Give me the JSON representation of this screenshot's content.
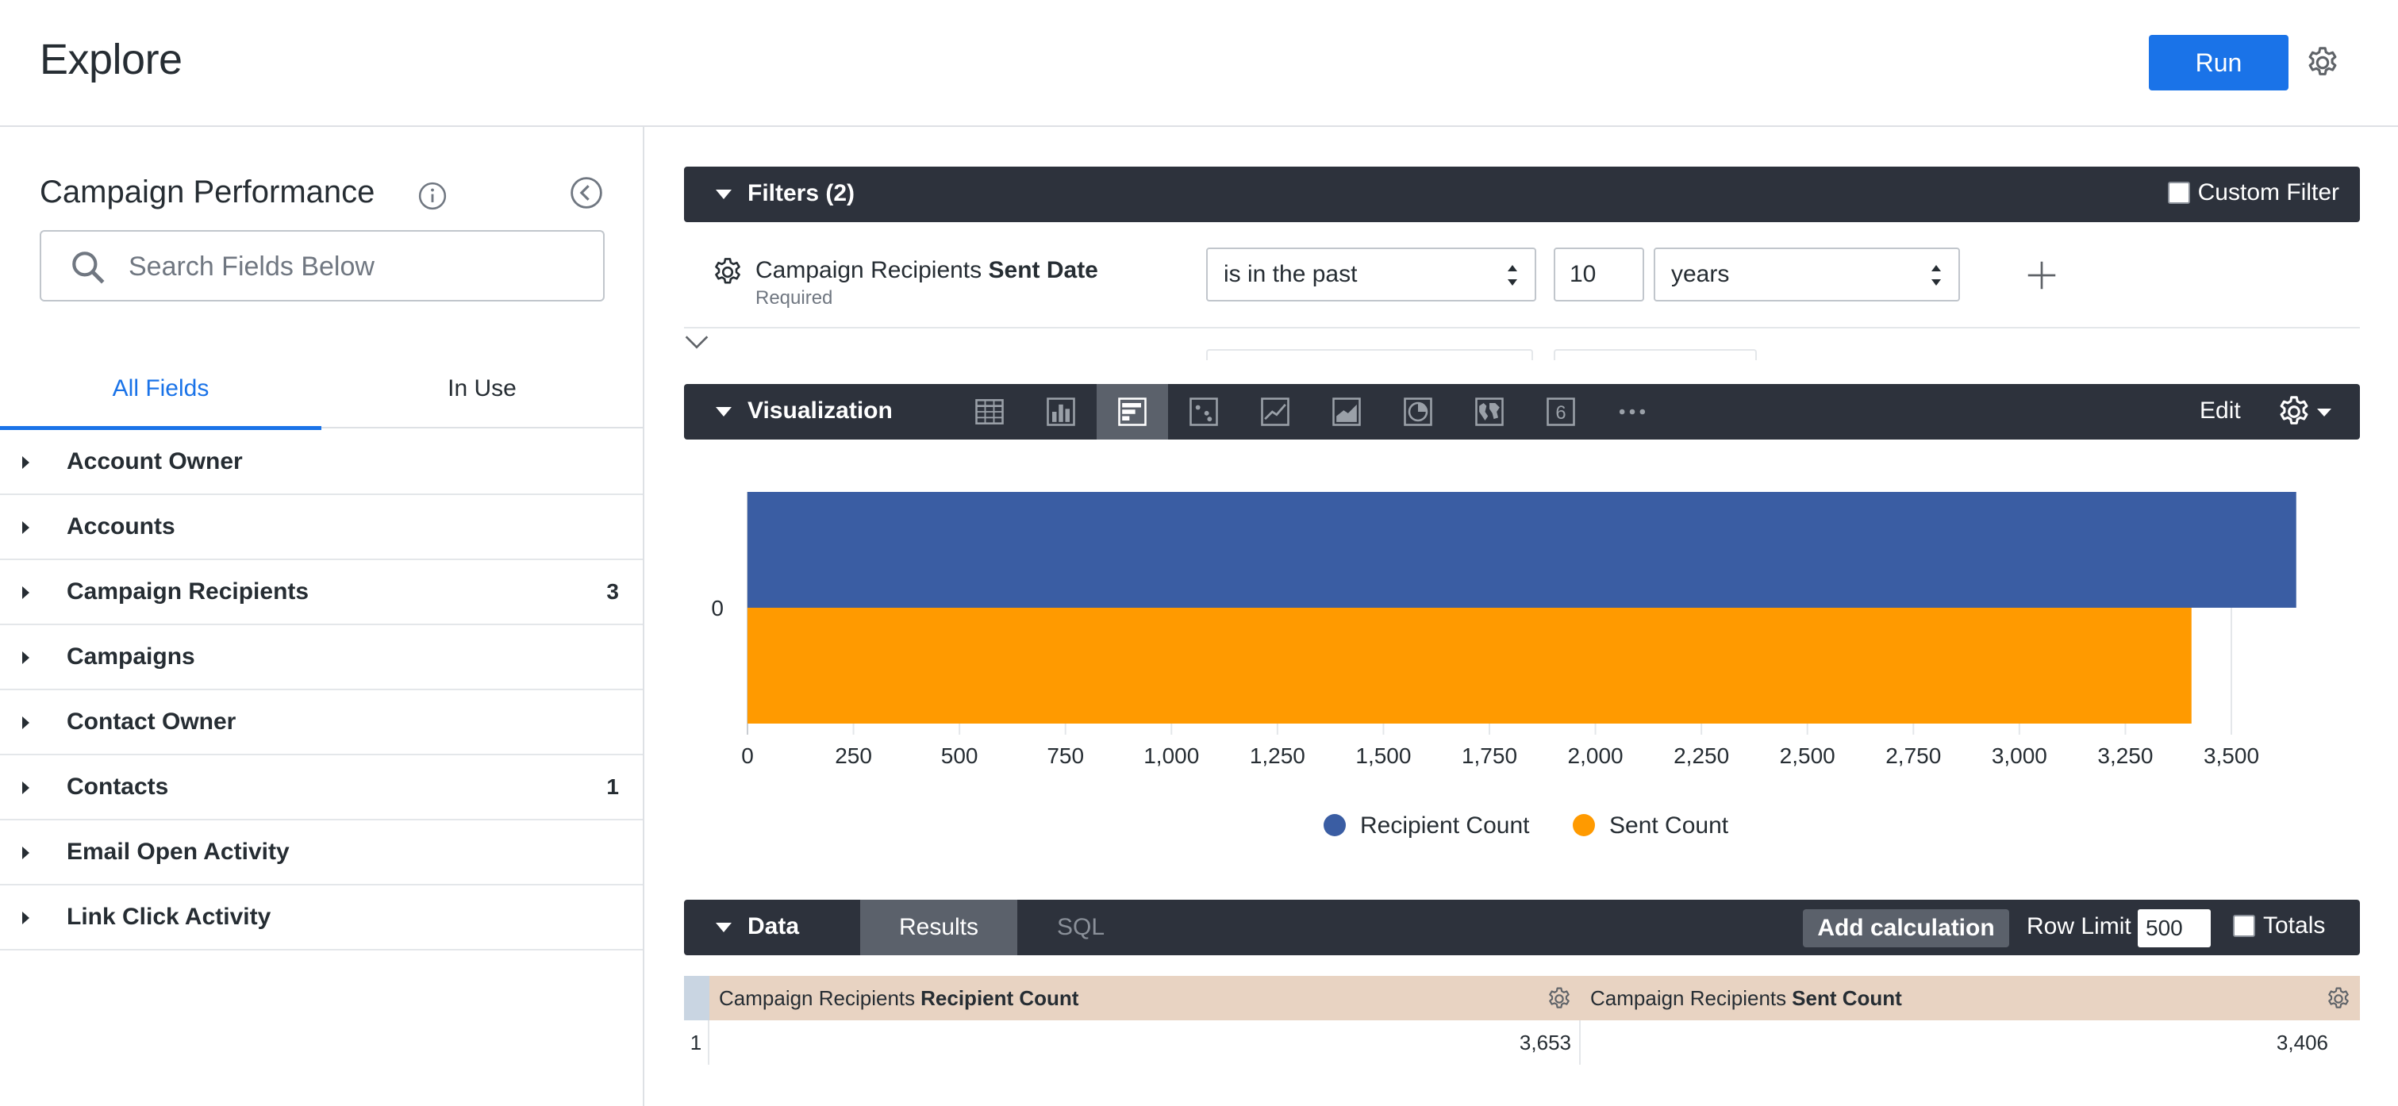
{
  "header": {
    "title": "Explore",
    "run_label": "Run",
    "gear_icon": "gear-icon"
  },
  "sidebar": {
    "explore_name": "Campaign Performance",
    "search_placeholder": "Search Fields Below",
    "tabs": [
      {
        "label": "All Fields",
        "active": true
      },
      {
        "label": "In Use",
        "active": false
      }
    ],
    "views": [
      {
        "label": "Account Owner",
        "count": ""
      },
      {
        "label": "Accounts",
        "count": ""
      },
      {
        "label": "Campaign Recipients",
        "count": "3"
      },
      {
        "label": "Campaigns",
        "count": ""
      },
      {
        "label": "Contact Owner",
        "count": ""
      },
      {
        "label": "Contacts",
        "count": "1"
      },
      {
        "label": "Email Open Activity",
        "count": ""
      },
      {
        "label": "Link Click Activity",
        "count": ""
      }
    ]
  },
  "filters": {
    "title": "Filters (2)",
    "custom_filter_label": "Custom Filter",
    "rows": [
      {
        "view": "Campaign Recipients",
        "field": "Sent Date",
        "required": "Required",
        "operator": "is in the past",
        "value": "10",
        "unit": "years"
      }
    ]
  },
  "visualization": {
    "title": "Visualization",
    "edit_label": "Edit",
    "icons": [
      "table-icon",
      "column-chart-icon",
      "bar-chart-icon",
      "scatter-icon",
      "line-chart-icon",
      "area-chart-icon",
      "pie-chart-icon",
      "map-icon",
      "single-value-icon",
      "more-icon"
    ],
    "active_icon": "bar-chart-icon",
    "single_value_glyph": "6"
  },
  "chart_data": {
    "type": "bar",
    "orientation": "horizontal",
    "categories": [
      "0"
    ],
    "series": [
      {
        "name": "Recipient Count",
        "values": [
          3653
        ],
        "color": "#3a5da3"
      },
      {
        "name": "Sent Count",
        "values": [
          3406
        ],
        "color": "#ff9a00"
      }
    ],
    "xlim": [
      0,
      3500
    ],
    "x_ticks": [
      "0",
      "250",
      "500",
      "750",
      "1,000",
      "1,250",
      "1,500",
      "1,750",
      "2,000",
      "2,250",
      "2,500",
      "2,750",
      "3,000",
      "3,250",
      "3,500"
    ],
    "grid": true,
    "legend_position": "bottom"
  },
  "data": {
    "title": "Data",
    "tabs": [
      {
        "label": "Results",
        "active": true
      },
      {
        "label": "SQL",
        "active": false
      }
    ],
    "add_calculation_label": "Add calculation",
    "row_limit_label": "Row Limit",
    "row_limit_value": "500",
    "totals_label": "Totals",
    "columns": [
      {
        "view": "Campaign Recipients",
        "field": "Recipient Count"
      },
      {
        "view": "Campaign Recipients",
        "field": "Sent Count"
      }
    ],
    "rows": [
      {
        "num": "1",
        "values": [
          "3,653",
          "3,406"
        ]
      }
    ]
  },
  "colors": {
    "accent": "#1a73e8",
    "section_bar": "#2d323c",
    "header_cell": "#e8d3c2"
  }
}
